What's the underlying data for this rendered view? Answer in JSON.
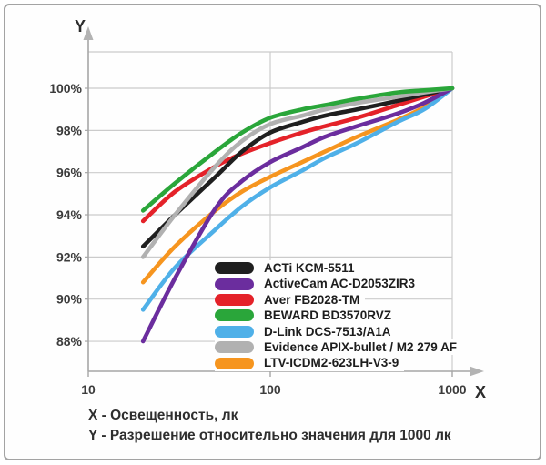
{
  "captions": {
    "x_caption": "X - Освещенность, лк",
    "y_caption": "Y - Разрешение относительно значения для 1000 лк"
  },
  "chart_data": {
    "type": "line",
    "title": "",
    "grid": true,
    "legend_position": "inside-bottom-center",
    "x_axis": {
      "letter": "X",
      "scale": "log",
      "range": [
        10,
        1000
      ],
      "ticks": [
        {
          "value": 10,
          "label": "10"
        },
        {
          "value": 100,
          "label": "100"
        },
        {
          "value": 1000,
          "label": "1000"
        }
      ]
    },
    "y_axis": {
      "letter": "Y",
      "unit": "%",
      "range": [
        88,
        100
      ],
      "ticks": [
        {
          "value": 100,
          "label": "100%"
        },
        {
          "value": 98,
          "label": "98%"
        },
        {
          "value": 96,
          "label": "96%"
        },
        {
          "value": 94,
          "label": "94%"
        },
        {
          "value": 92,
          "label": "92%"
        },
        {
          "value": 90,
          "label": "90%"
        },
        {
          "value": 88,
          "label": "88%"
        }
      ]
    },
    "x": [
      20,
      30,
      50,
      70,
      100,
      150,
      200,
      300,
      500,
      700,
      1000
    ],
    "series": [
      {
        "name": "ACTi KCM-5511",
        "color": "#1f1f1f",
        "values": [
          92.5,
          94.0,
          95.8,
          97.0,
          97.9,
          98.4,
          98.7,
          99.0,
          99.4,
          99.7,
          100
        ]
      },
      {
        "name": "ActiveCam AC-D2053ZIR3",
        "color": "#6b2d9e",
        "values": [
          88.0,
          91.0,
          94.3,
          95.6,
          96.5,
          97.2,
          97.7,
          98.2,
          98.8,
          99.3,
          100
        ]
      },
      {
        "name": "Aver FB2028-TM",
        "color": "#e42229",
        "values": [
          93.7,
          95.1,
          96.3,
          96.9,
          97.4,
          97.9,
          98.2,
          98.6,
          99.2,
          99.6,
          100
        ]
      },
      {
        "name": "BEWARD BD3570RVZ",
        "color": "#2aa63a",
        "values": [
          94.2,
          95.5,
          97.0,
          97.9,
          98.6,
          99.0,
          99.2,
          99.5,
          99.8,
          99.9,
          100
        ]
      },
      {
        "name": "D-Link DCS-7513/A1A",
        "color": "#4fb0e8",
        "values": [
          89.5,
          91.5,
          93.3,
          94.4,
          95.3,
          96.1,
          96.7,
          97.4,
          98.4,
          99.0,
          100
        ]
      },
      {
        "name": "Evidence APIX-bullet / M2 279 AF",
        "color": "#b1b1b1",
        "values": [
          92.0,
          94.0,
          96.3,
          97.5,
          98.3,
          98.7,
          99.0,
          99.3,
          99.6,
          99.8,
          100
        ]
      },
      {
        "name": "LTV-ICDM2-623LH-V3-9",
        "color": "#f6951f",
        "values": [
          90.8,
          92.5,
          94.2,
          95.1,
          95.8,
          96.5,
          97.0,
          97.7,
          98.5,
          99.1,
          100
        ]
      }
    ]
  }
}
